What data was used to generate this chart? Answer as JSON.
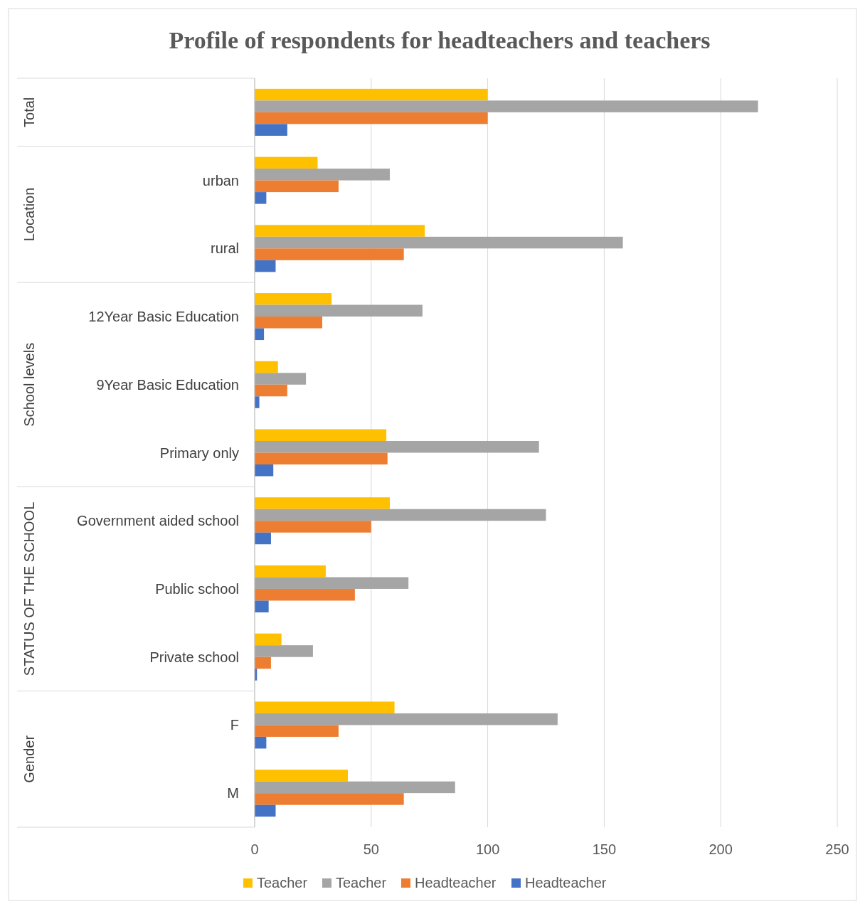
{
  "chart_data": {
    "type": "bar",
    "orientation": "horizontal",
    "title": "Profile of respondents for headteachers and teachers",
    "categories": [
      null,
      "urban",
      "rural",
      "12Year Basic Education",
      "9Year Basic Education",
      "Primary only",
      "Government aided school",
      "Public school",
      "Private school",
      "F",
      "M"
    ],
    "series": [
      {
        "name": "Teacher",
        "color": "#ffc000",
        "values": [
          100,
          27,
          73,
          33,
          10,
          56.5,
          58,
          30.5,
          11.5,
          60,
          40
        ]
      },
      {
        "name": "Teacher",
        "color": "#a5a5a5",
        "values": [
          216,
          58,
          158,
          72,
          22,
          122,
          125,
          66,
          25,
          130,
          86
        ]
      },
      {
        "name": "Headteacher",
        "color": "#ed7d31",
        "values": [
          100,
          36,
          64,
          29,
          14,
          57,
          50,
          43,
          7,
          36,
          64
        ]
      },
      {
        "name": "Headteacher",
        "color": "#4472c4",
        "values": [
          14,
          5,
          9,
          4,
          2,
          8,
          7,
          6,
          1,
          5,
          9
        ]
      }
    ],
    "annotations": [
      "Total",
      "Location",
      "School levels",
      "STATUS OF THE SCHOOL",
      "Gender"
    ],
    "xlim": [
      0,
      250
    ],
    "xticks": [
      0,
      50,
      100,
      150,
      200,
      250
    ],
    "grid": "x",
    "legend": "bottom"
  }
}
